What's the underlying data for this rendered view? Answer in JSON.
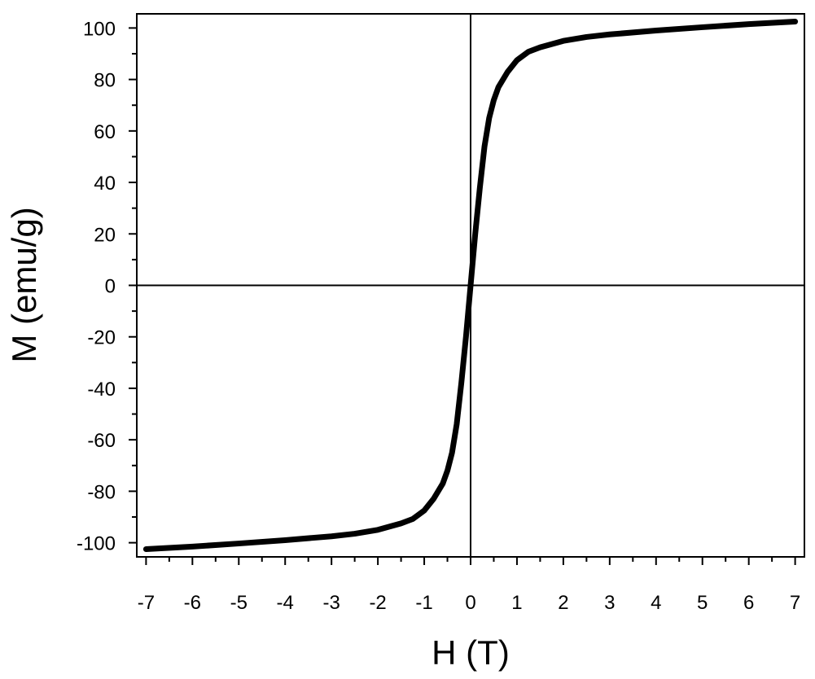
{
  "chart_data": {
    "type": "line",
    "title": "",
    "xlabel": "H (T)",
    "ylabel": "M (emu/g)",
    "xlim": [
      -7.2,
      7.2
    ],
    "ylim": [
      -105.5,
      105.5
    ],
    "xticks": [
      -7,
      -6,
      -5,
      -4,
      -3,
      -2,
      -1,
      0,
      1,
      2,
      3,
      4,
      5,
      6,
      7
    ],
    "yticks": [
      -100,
      -80,
      -60,
      -40,
      -20,
      0,
      20,
      40,
      60,
      80,
      100
    ],
    "grid": false,
    "zero_lines": true,
    "legend": null,
    "series": [
      {
        "color": "#000000",
        "x": [
          -7,
          -6,
          -5,
          -4,
          -3,
          -2.5,
          -2,
          -1.5,
          -1.25,
          -1,
          -0.8,
          -0.6,
          -0.5,
          -0.4,
          -0.3,
          -0.2,
          -0.1,
          0,
          0.1,
          0.2,
          0.3,
          0.4,
          0.5,
          0.6,
          0.8,
          1,
          1.25,
          1.5,
          2,
          2.5,
          3,
          4,
          5,
          6,
          7
        ],
        "y": [
          -102.5,
          -101.5,
          -100.3,
          -99,
          -97.5,
          -96.5,
          -95,
          -92.5,
          -90.8,
          -87.5,
          -83,
          -77,
          -72,
          -65,
          -54,
          -38,
          -20,
          0,
          20,
          38,
          54,
          65,
          72,
          77,
          83,
          87.5,
          90.8,
          92.5,
          95,
          96.5,
          97.5,
          99,
          100.3,
          101.5,
          102.5
        ]
      }
    ]
  }
}
